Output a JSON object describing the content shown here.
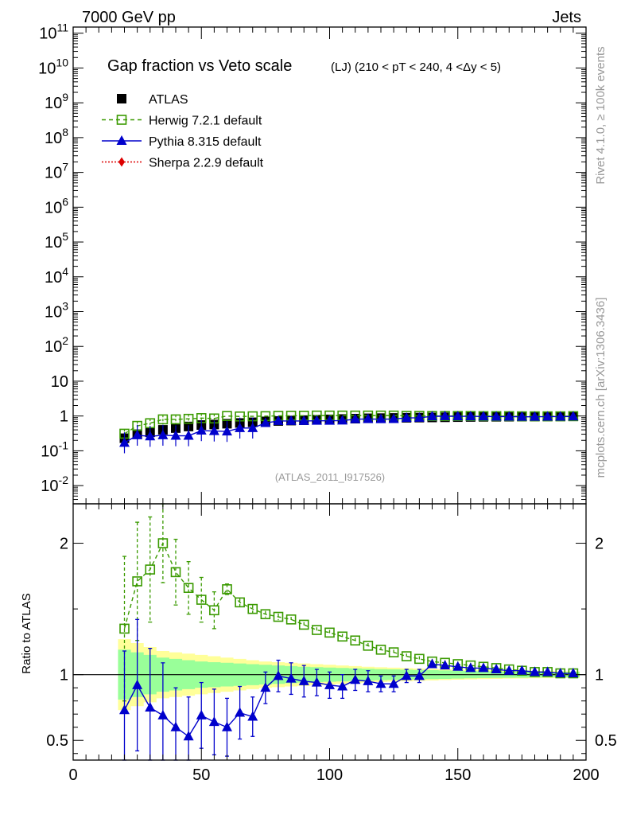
{
  "header": {
    "left_label": "7000 GeV pp",
    "right_label": "Jets"
  },
  "side_labels": {
    "rivet": "Rivet 4.1.0, ≥ 100k events",
    "mcplots": "mcplots.cern.ch [arXiv:1306.3436]"
  },
  "chart_data": [
    {
      "type": "scatter",
      "panel": "main",
      "title": "Gap fraction vs Veto scale",
      "subtitle": "(LJ) (210 < pT < 240, 4 <Δy < 5)",
      "watermark": "(ATLAS_2011_I917526)",
      "yscale": "log",
      "xlim": [
        0,
        200
      ],
      "ylim": [
        0.003,
        150000000000.0
      ],
      "y_tick_labels": [
        "10^-2",
        "10^-1",
        "1",
        "10",
        "10^2",
        "10^3",
        "10^4",
        "10^5",
        "10^6",
        "10^7",
        "10^8",
        "10^9",
        "10^10",
        "10^11"
      ],
      "legend_position": "top-left",
      "x": [
        20,
        25,
        30,
        35,
        40,
        45,
        50,
        55,
        60,
        65,
        70,
        75,
        80,
        85,
        90,
        95,
        100,
        105,
        110,
        115,
        120,
        125,
        130,
        135,
        140,
        145,
        150,
        155,
        160,
        165,
        170,
        175,
        180,
        185,
        190,
        195
      ],
      "series": [
        {
          "name": "ATLAS",
          "color": "#000000",
          "marker": "square-filled",
          "values": [
            0.23,
            0.3,
            0.34,
            0.4,
            0.45,
            0.5,
            0.55,
            0.57,
            0.6,
            0.63,
            0.66,
            0.7,
            0.72,
            0.74,
            0.76,
            0.78,
            0.8,
            0.82,
            0.84,
            0.86,
            0.87,
            0.88,
            0.89,
            0.9,
            0.91,
            0.92,
            0.93,
            0.94,
            0.945,
            0.95,
            0.955,
            0.96,
            0.965,
            0.97,
            0.975,
            0.98
          ]
        },
        {
          "name": "Herwig 7.2.1 default",
          "color": "#3a9a00",
          "marker": "square-open",
          "linestyle": "dashed",
          "values": [
            0.31,
            0.52,
            0.62,
            0.8,
            0.8,
            0.83,
            0.87,
            0.85,
            1.0,
            0.97,
            0.98,
            0.99,
            1.01,
            1.02,
            1.02,
            1.03,
            1.03,
            1.03,
            1.03,
            1.03,
            1.03,
            1.03,
            1.01,
            1.01,
            1.0,
            1.0,
            1.0,
            1.0,
            0.99,
            0.99,
            0.99,
            0.98,
            0.98,
            0.98,
            0.98,
            0.99
          ]
        },
        {
          "name": "Pythia 8.315 default",
          "color": "#0000cc",
          "marker": "triangle-filled",
          "linestyle": "solid",
          "values": [
            0.17,
            0.28,
            0.26,
            0.28,
            0.27,
            0.27,
            0.38,
            0.37,
            0.36,
            0.45,
            0.45,
            0.63,
            0.72,
            0.72,
            0.72,
            0.73,
            0.73,
            0.74,
            0.81,
            0.82,
            0.81,
            0.82,
            0.88,
            0.89,
            0.98,
            0.99,
            0.98,
            0.98,
            0.97,
            0.96,
            0.96,
            0.95,
            0.95,
            0.96,
            0.96,
            0.97
          ]
        },
        {
          "name": "Sherpa 2.2.9 default",
          "color": "#dd0000",
          "marker": "diamond-filled",
          "linestyle": "dotted",
          "values": []
        }
      ]
    },
    {
      "type": "scatter",
      "panel": "ratio",
      "ylabel": "Ratio to ATLAS",
      "xlim": [
        0,
        200
      ],
      "ylim": [
        0.35,
        2.3
      ],
      "y_tick_labels": [
        "0.5",
        "1",
        "2"
      ],
      "x_tick_labels": [
        "0",
        "50",
        "100",
        "150",
        "200"
      ],
      "x": [
        20,
        25,
        30,
        35,
        40,
        45,
        50,
        55,
        60,
        65,
        70,
        75,
        80,
        85,
        90,
        95,
        100,
        105,
        110,
        115,
        120,
        125,
        130,
        135,
        140,
        145,
        150,
        155,
        160,
        165,
        170,
        175,
        180,
        185,
        190,
        195
      ],
      "band_inner_halfwidth": [
        0.19,
        0.17,
        0.15,
        0.13,
        0.12,
        0.11,
        0.1,
        0.095,
        0.09,
        0.085,
        0.08,
        0.075,
        0.07,
        0.065,
        0.06,
        0.057,
        0.054,
        0.051,
        0.048,
        0.045,
        0.042,
        0.04,
        0.038,
        0.036,
        0.034,
        0.032,
        0.03,
        0.028,
        0.026,
        0.025,
        0.024,
        0.023,
        0.022,
        0.021,
        0.02,
        0.02
      ],
      "band_outer_halfwidth": [
        0.27,
        0.24,
        0.21,
        0.18,
        0.17,
        0.16,
        0.15,
        0.14,
        0.13,
        0.12,
        0.11,
        0.1,
        0.095,
        0.09,
        0.085,
        0.08,
        0.075,
        0.07,
        0.065,
        0.06,
        0.056,
        0.053,
        0.05,
        0.047,
        0.044,
        0.041,
        0.038,
        0.036,
        0.034,
        0.032,
        0.03,
        0.029,
        0.028,
        0.027,
        0.026,
        0.025
      ],
      "series": [
        {
          "name": "Herwig 7.2.1 default",
          "color": "#3a9a00",
          "marker": "square-open",
          "linestyle": "dashed",
          "values": [
            1.35,
            1.71,
            1.8,
            2.0,
            1.78,
            1.66,
            1.57,
            1.49,
            1.65,
            1.55,
            1.5,
            1.46,
            1.44,
            1.42,
            1.38,
            1.34,
            1.32,
            1.29,
            1.26,
            1.22,
            1.19,
            1.17,
            1.14,
            1.12,
            1.1,
            1.09,
            1.08,
            1.07,
            1.06,
            1.05,
            1.04,
            1.03,
            1.02,
            1.02,
            1.01,
            1.01
          ],
          "errors": [
            0.55,
            0.45,
            0.4,
            0.3,
            0.25,
            0.2,
            0.17,
            0.14,
            0.04,
            0.03,
            0.03,
            0.025,
            0.025,
            0.02,
            0.02,
            0.02,
            0.02,
            0.02,
            0.02,
            0.02,
            0.02,
            0.02,
            0.02,
            0.02,
            0.02,
            0.02,
            0.02,
            0.02,
            0.02,
            0.02,
            0.02,
            0.02,
            0.02,
            0.02,
            0.02,
            0.02
          ]
        },
        {
          "name": "Pythia 8.315 default",
          "color": "#0000cc",
          "marker": "triangle-filled",
          "linestyle": "solid",
          "values": [
            0.73,
            0.92,
            0.75,
            0.69,
            0.6,
            0.53,
            0.69,
            0.64,
            0.6,
            0.71,
            0.68,
            0.9,
            0.99,
            0.97,
            0.95,
            0.94,
            0.92,
            0.91,
            0.96,
            0.95,
            0.93,
            0.93,
            0.99,
            0.99,
            1.08,
            1.07,
            1.06,
            1.05,
            1.05,
            1.04,
            1.03,
            1.03,
            1.02,
            1.02,
            1.01,
            1.01
          ],
          "errors": [
            0.45,
            0.5,
            0.45,
            0.4,
            0.3,
            0.3,
            0.25,
            0.25,
            0.22,
            0.2,
            0.15,
            0.12,
            0.12,
            0.12,
            0.12,
            0.1,
            0.1,
            0.09,
            0.08,
            0.08,
            0.06,
            0.06,
            0.05,
            0.05,
            0.02,
            0.02,
            0.02,
            0.02,
            0.02,
            0.02,
            0.02,
            0.02,
            0.02,
            0.02,
            0.02,
            0.02
          ]
        }
      ]
    }
  ]
}
